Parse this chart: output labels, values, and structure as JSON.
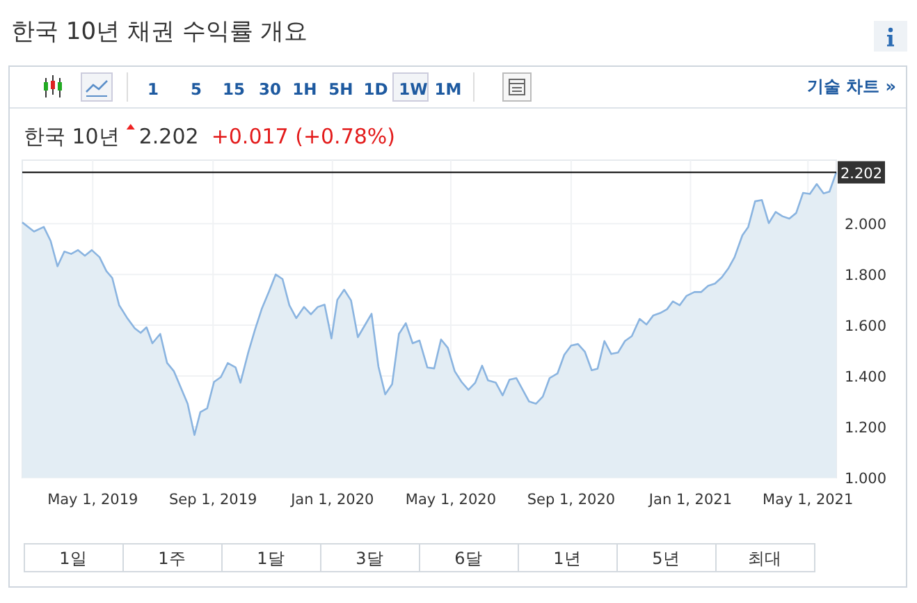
{
  "chart_data": {
    "type": "area",
    "title": "한국 10년 채권 수익률 개요",
    "subtitle": "한국 10년",
    "annotations": [
      "2.202",
      "+0.017 (+0.78%)",
      "1 5 15 30 1H 5H 1D 1W 1M",
      "기술 차트 »",
      "1일",
      "1주",
      "1달",
      "3달",
      "6달",
      "1년",
      "5년",
      "최대"
    ],
    "color": "#8ab4e0",
    "grid": true,
    "xlim": [
      "2019-02-18",
      "2021-05-30"
    ],
    "ylim": [
      1.0,
      2.25
    ],
    "xticks": [
      {
        "value": "2019-05-01",
        "label": "May 1, 2019"
      },
      {
        "value": "2019-09-01",
        "label": "Sep 1, 2019"
      },
      {
        "value": "2020-01-01",
        "label": "Jan 1, 2020"
      },
      {
        "value": "2020-05-01",
        "label": "May 1, 2020"
      },
      {
        "value": "2020-09-01",
        "label": "Sep 1, 2020"
      },
      {
        "value": "2021-01-01",
        "label": "Jan 1, 2021"
      },
      {
        "value": "2021-05-01",
        "label": "May 1, 2021"
      }
    ],
    "yticks": [
      {
        "value": 1.0,
        "label": "1.000"
      },
      {
        "value": 1.2,
        "label": "1.200"
      },
      {
        "value": 1.4,
        "label": "1.400"
      },
      {
        "value": 1.6,
        "label": "1.600"
      },
      {
        "value": 1.8,
        "label": "1.800"
      },
      {
        "value": 2.0,
        "label": "2.000"
      }
    ],
    "ref_lines": [
      {
        "axis": "y",
        "value": 2.202,
        "label": "2.202",
        "color": "#000000"
      }
    ],
    "x": [
      "2019-02-18",
      "2019-03-02",
      "2019-03-12",
      "2019-03-19",
      "2019-03-26",
      "2019-04-02",
      "2019-04-09",
      "2019-04-16",
      "2019-04-23",
      "2019-04-30",
      "2019-05-08",
      "2019-05-15",
      "2019-05-21",
      "2019-05-28",
      "2019-06-05",
      "2019-06-13",
      "2019-06-19",
      "2019-06-25",
      "2019-07-01",
      "2019-07-09",
      "2019-07-16",
      "2019-07-23",
      "2019-07-30",
      "2019-08-06",
      "2019-08-13",
      "2019-08-19",
      "2019-08-26",
      "2019-09-02",
      "2019-09-09",
      "2019-09-16",
      "2019-09-24",
      "2019-09-29",
      "2019-10-07",
      "2019-10-14",
      "2019-10-21",
      "2019-10-28",
      "2019-11-04",
      "2019-11-11",
      "2019-11-18",
      "2019-11-25",
      "2019-12-03",
      "2019-12-10",
      "2019-12-17",
      "2019-12-24",
      "2019-12-31",
      "2020-01-06",
      "2020-01-13",
      "2020-01-20",
      "2020-01-27",
      "2020-02-03",
      "2020-02-10",
      "2020-02-17",
      "2020-02-24",
      "2020-03-02",
      "2020-03-09",
      "2020-03-16",
      "2020-03-23",
      "2020-03-30",
      "2020-04-07",
      "2020-04-14",
      "2020-04-21",
      "2020-04-28",
      "2020-05-05",
      "2020-05-12",
      "2020-05-19",
      "2020-05-26",
      "2020-06-02",
      "2020-06-08",
      "2020-06-16",
      "2020-06-23",
      "2020-06-30",
      "2020-07-07",
      "2020-07-14",
      "2020-07-20",
      "2020-07-27",
      "2020-08-03",
      "2020-08-10",
      "2020-08-18",
      "2020-08-25",
      "2020-09-01",
      "2020-09-08",
      "2020-09-15",
      "2020-09-22",
      "2020-09-28",
      "2020-10-05",
      "2020-10-12",
      "2020-10-19",
      "2020-10-26",
      "2020-11-02",
      "2020-11-10",
      "2020-11-17",
      "2020-11-24",
      "2020-12-01",
      "2020-12-08",
      "2020-12-14",
      "2020-12-21",
      "2020-12-28",
      "2021-01-05",
      "2021-01-12",
      "2021-01-19",
      "2021-01-26",
      "2021-02-02",
      "2021-02-09",
      "2021-02-15",
      "2021-02-23",
      "2021-03-01",
      "2021-03-08",
      "2021-03-15",
      "2021-03-22",
      "2021-03-29",
      "2021-04-05",
      "2021-04-12",
      "2021-04-19",
      "2021-04-26",
      "2021-05-03",
      "2021-05-10",
      "2021-05-17",
      "2021-05-23",
      "2021-05-30"
    ],
    "values": [
      2.005,
      1.969,
      1.987,
      1.932,
      1.832,
      1.89,
      1.881,
      1.896,
      1.874,
      1.896,
      1.868,
      1.813,
      1.786,
      1.679,
      1.63,
      1.588,
      1.57,
      1.592,
      1.529,
      1.566,
      1.452,
      1.419,
      1.355,
      1.291,
      1.168,
      1.258,
      1.273,
      1.377,
      1.396,
      1.451,
      1.434,
      1.374,
      1.493,
      1.584,
      1.667,
      1.731,
      1.8,
      1.782,
      1.679,
      1.628,
      1.672,
      1.643,
      1.672,
      1.681,
      1.548,
      1.7,
      1.74,
      1.698,
      1.553,
      1.599,
      1.645,
      1.438,
      1.328,
      1.368,
      1.566,
      1.608,
      1.529,
      1.54,
      1.434,
      1.43,
      1.544,
      1.511,
      1.419,
      1.377,
      1.346,
      1.374,
      1.441,
      1.383,
      1.374,
      1.324,
      1.386,
      1.392,
      1.342,
      1.3,
      1.291,
      1.319,
      1.392,
      1.41,
      1.484,
      1.52,
      1.526,
      1.496,
      1.423,
      1.429,
      1.538,
      1.487,
      1.493,
      1.538,
      1.557,
      1.625,
      1.603,
      1.639,
      1.648,
      1.663,
      1.694,
      1.679,
      1.716,
      1.731,
      1.731,
      1.755,
      1.764,
      1.789,
      1.826,
      1.868,
      1.954,
      1.987,
      2.088,
      2.093,
      2.002,
      2.046,
      2.029,
      2.02,
      2.042,
      2.121,
      2.117,
      2.156,
      2.119,
      2.126,
      2.202
    ]
  }
}
